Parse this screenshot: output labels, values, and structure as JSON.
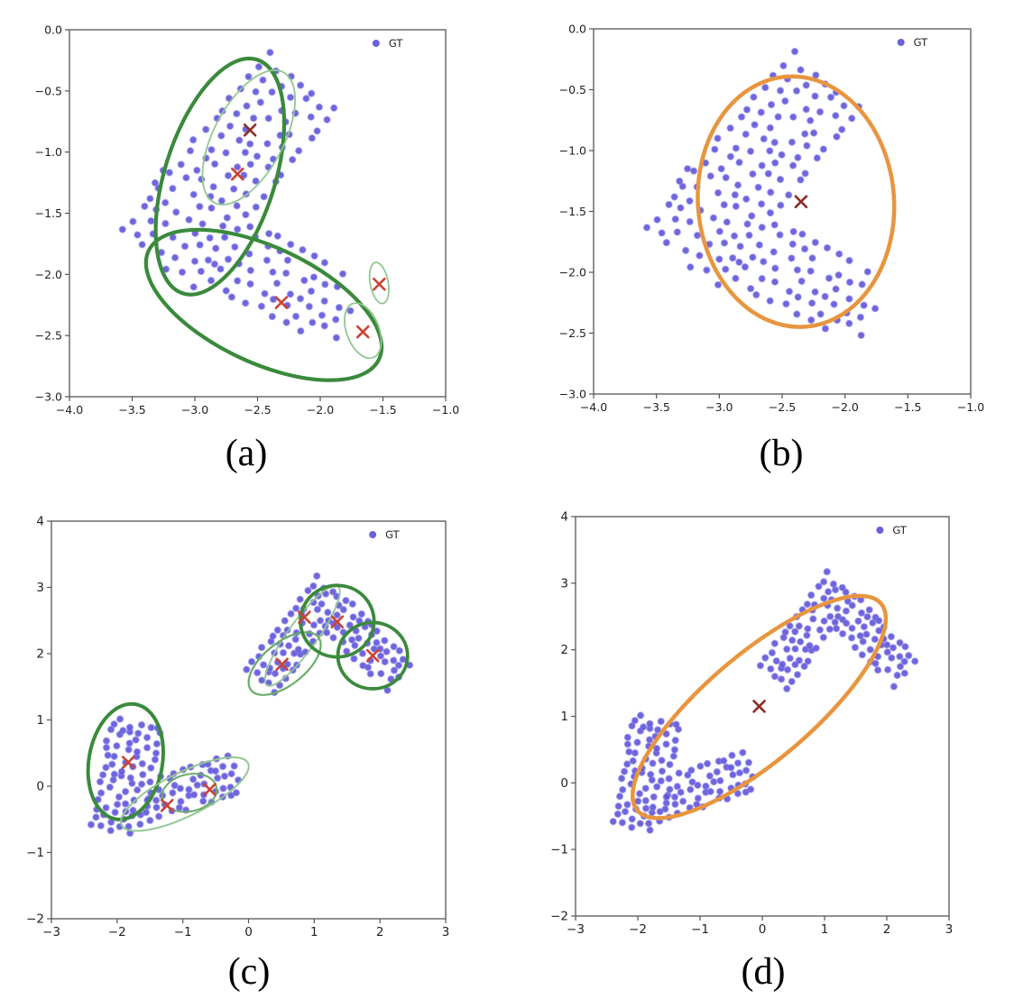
{
  "figure": {
    "legend_label": "GT",
    "colors": {
      "scatter": "#5a50d8",
      "scatter_edge": "#8c85ea",
      "cross": "#cb4335",
      "cross_dark": "#8c2c24",
      "dark": "#3a8a3c",
      "med": "#69ac69",
      "light": "#92c692",
      "orange": "#e8953f",
      "axis": "#555555",
      "tick_text": "#222222"
    }
  },
  "chart_data": {
    "type": "scatter",
    "datasets": {
      "chevron_top": {
        "arms": [
          {
            "origin": [
              -3.57,
              -1.64
            ],
            "angle": 51,
            "length": 1.85,
            "width": 0.68,
            "side": -1,
            "step": 0.115,
            "row_step": 0.115,
            "jitter": 0.03,
            "seed": 7
          },
          {
            "origin": [
              -3.57,
              -1.64
            ],
            "angle": -30.5,
            "length": 1.94,
            "width": 0.62,
            "side": 1,
            "step": 0.115,
            "row_step": 0.115,
            "jitter": 0.03,
            "seed": 13
          }
        ]
      },
      "arrow_bottom": {
        "arms": [
          {
            "origin": [
              -2.38,
              -0.62
            ],
            "angle": 79,
            "length": 1.7,
            "width": 0.7,
            "side": -1,
            "step": 0.135,
            "row_step": 0.145,
            "jitter": 0.04,
            "seed": 3
          },
          {
            "origin": [
              -1.85,
              -0.6
            ],
            "angle": 17,
            "length": 1.85,
            "width": 0.56,
            "side": 1,
            "step": 0.135,
            "row_step": 0.135,
            "jitter": 0.04,
            "seed": 5
          },
          {
            "origin": [
              0.4,
              1.42
            ],
            "angle": 52,
            "length": 1.8,
            "width": 0.52,
            "side": 1,
            "step": 0.135,
            "row_step": 0.135,
            "jitter": 0.04,
            "seed": 9
          },
          {
            "origin": [
              1.32,
              3.0
            ],
            "angle": -45,
            "length": 1.62,
            "width": 0.58,
            "side": -1,
            "step": 0.135,
            "row_step": 0.135,
            "jitter": 0.04,
            "seed": 11
          }
        ]
      }
    },
    "panels": [
      {
        "id": "a",
        "caption": "(a)",
        "legend": "GT",
        "xlim": [
          -4,
          -1
        ],
        "ylim": [
          -3,
          0
        ],
        "x_ticks": [
          -4,
          -3.5,
          -3,
          -2.5,
          -2,
          -1.5,
          -1
        ],
        "x_tick_labels": [
          "−4.0",
          "−3.5",
          "−3.0",
          "−2.5",
          "−2.0",
          "−1.5",
          "−1.0"
        ],
        "y_ticks": [
          0,
          -0.5,
          -1,
          -1.5,
          -2,
          -2.5,
          -3
        ],
        "y_tick_labels": [
          "0.0",
          "−0.5",
          "−1.0",
          "−1.5",
          "−2.0",
          "−2.5",
          "−3.0"
        ],
        "points": "chevron_top",
        "ellipses": [
          {
            "cx": -2.8,
            "cy": -1.2,
            "a": 1.0,
            "b": 0.44,
            "angle": 73,
            "color": "dark",
            "w": 4.2
          },
          {
            "cx": -2.45,
            "cy": -2.25,
            "a": 1.02,
            "b": 0.47,
            "angle": -26,
            "color": "dark",
            "w": 4.2
          },
          {
            "cx": -2.57,
            "cy": -0.88,
            "a": 0.6,
            "b": 0.28,
            "angle": 63,
            "color": "light",
            "w": 1.8
          },
          {
            "cx": -1.66,
            "cy": -2.46,
            "a": 0.235,
            "b": 0.13,
            "angle": 110,
            "color": "light",
            "w": 1.8
          },
          {
            "cx": -1.53,
            "cy": -2.07,
            "a": 0.17,
            "b": 0.072,
            "angle": 100,
            "color": "light",
            "w": 1.8
          }
        ],
        "crosses": [
          {
            "x": -2.56,
            "y": -0.82,
            "dark": true
          },
          {
            "x": -2.66,
            "y": -1.18
          },
          {
            "x": -2.31,
            "y": -2.23
          },
          {
            "x": -1.66,
            "y": -2.47
          },
          {
            "x": -1.53,
            "y": -2.08
          }
        ]
      },
      {
        "id": "b",
        "caption": "(b)",
        "legend": "GT",
        "xlim": [
          -4,
          -1
        ],
        "ylim": [
          -3,
          0
        ],
        "x_ticks": [
          -4,
          -3.5,
          -3,
          -2.5,
          -2,
          -1.5,
          -1
        ],
        "x_tick_labels": [
          "−4.0",
          "−3.5",
          "−3.0",
          "−2.5",
          "−2.0",
          "−1.5",
          "−1.0"
        ],
        "y_ticks": [
          0,
          -0.5,
          -1,
          -1.5,
          -2,
          -2.5,
          -3
        ],
        "y_tick_labels": [
          "0.0",
          "−0.5",
          "−1.0",
          "−1.5",
          "−2.0",
          "−2.5",
          "−3.0"
        ],
        "points": "chevron_top",
        "ellipses": [
          {
            "cx": -2.39,
            "cy": -1.42,
            "a": 1.03,
            "b": 0.78,
            "angle": 94,
            "color": "orange",
            "w": 4.5
          }
        ],
        "crosses": [
          {
            "x": -2.35,
            "y": -1.42,
            "dark": true
          }
        ]
      },
      {
        "id": "c",
        "caption": "(c)",
        "legend": "GT",
        "xlim": [
          -3,
          3
        ],
        "ylim": [
          -2,
          4
        ],
        "x_ticks": [
          -3,
          -2,
          -1,
          0,
          1,
          2,
          3
        ],
        "x_tick_labels": [
          "−3",
          "−2",
          "−1",
          "0",
          "1",
          "2",
          "3"
        ],
        "y_ticks": [
          4,
          3,
          2,
          1,
          0,
          -1,
          -2
        ],
        "y_tick_labels": [
          "4",
          "3",
          "2",
          "1",
          "0",
          "−1",
          "−2"
        ],
        "points": "arrow_bottom",
        "ellipses": [
          {
            "cx": -1.87,
            "cy": 0.37,
            "a": 0.88,
            "b": 0.56,
            "angle": 80,
            "color": "dark",
            "w": 4.0
          },
          {
            "cx": -0.97,
            "cy": -0.12,
            "a": 1.07,
            "b": 0.33,
            "angle": 26,
            "color": "light",
            "w": 2.0
          },
          {
            "cx": -0.9,
            "cy": -0.1,
            "a": 0.42,
            "b": 0.28,
            "angle": 12,
            "color": "med",
            "w": 2.0
          },
          {
            "cx": 0.82,
            "cy": 2.27,
            "a": 0.92,
            "b": 0.22,
            "angle": 54,
            "color": "light",
            "w": 1.8
          },
          {
            "cx": 0.55,
            "cy": 1.85,
            "a": 0.65,
            "b": 0.32,
            "angle": 38,
            "color": "med",
            "w": 2.2
          },
          {
            "cx": 1.35,
            "cy": 2.49,
            "a": 0.56,
            "b": 0.54,
            "angle": 0,
            "color": "dark",
            "w": 3.8
          },
          {
            "cx": 1.89,
            "cy": 1.97,
            "a": 0.53,
            "b": 0.5,
            "angle": 0,
            "color": "dark",
            "w": 3.8
          }
        ],
        "crosses": [
          {
            "x": -1.83,
            "y": 0.36
          },
          {
            "x": -1.24,
            "y": -0.29
          },
          {
            "x": -0.59,
            "y": -0.05
          },
          {
            "x": 0.51,
            "y": 1.84
          },
          {
            "x": 0.85,
            "y": 2.55
          },
          {
            "x": 1.35,
            "y": 2.48
          },
          {
            "x": 1.89,
            "y": 1.97
          }
        ]
      },
      {
        "id": "d",
        "caption": "(d)",
        "legend": "GT",
        "xlim": [
          -3,
          3
        ],
        "ylim": [
          -2,
          4
        ],
        "x_ticks": [
          -3,
          -2,
          -1,
          0,
          1,
          2,
          3
        ],
        "x_tick_labels": [
          "−3",
          "−2",
          "−1",
          "0",
          "1",
          "2",
          "3"
        ],
        "y_ticks": [
          4,
          3,
          2,
          1,
          0,
          -1,
          -2
        ],
        "y_tick_labels": [
          "4",
          "3",
          "2",
          "1",
          "0",
          "−1",
          "−2"
        ],
        "points": "arrow_bottom",
        "ellipses": [
          {
            "cx": -0.05,
            "cy": 1.14,
            "a": 2.5,
            "b": 0.82,
            "angle": 38,
            "color": "orange",
            "w": 4.5
          }
        ],
        "crosses": [
          {
            "x": -0.05,
            "y": 1.15,
            "dark": true
          }
        ]
      }
    ]
  }
}
